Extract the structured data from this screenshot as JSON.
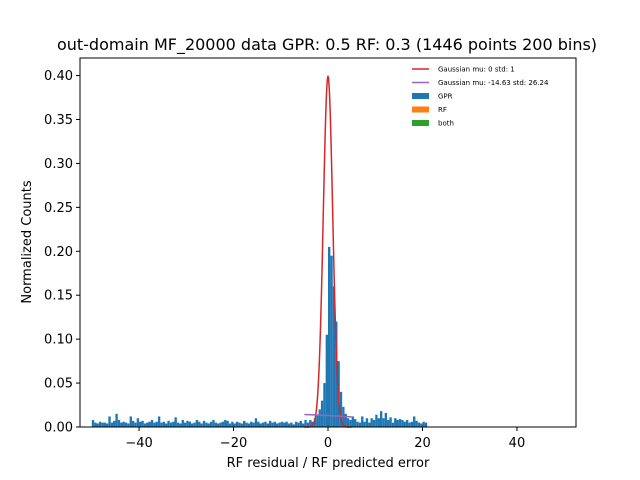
{
  "chart_data": {
    "type": "histogram",
    "title": "out-domain MF_20000 data GPR: 0.5 RF: 0.3 (1446 points 200 bins)",
    "xlabel": "RF residual / RF predicted error",
    "ylabel": "Normalized Counts",
    "xlim": [
      -52.5,
      52.5
    ],
    "ylim": [
      0,
      0.42
    ],
    "xticks": [
      -40,
      -20,
      0,
      20,
      40
    ],
    "xtick_labels": [
      "−40",
      "−20",
      "0",
      "20",
      "40"
    ],
    "yticks": [
      0.0,
      0.05,
      0.1,
      0.15,
      0.2,
      0.25,
      0.3,
      0.35,
      0.4
    ],
    "ytick_labels": [
      "0.00",
      "0.05",
      "0.10",
      "0.15",
      "0.20",
      "0.25",
      "0.30",
      "0.35",
      "0.40"
    ],
    "grid": false,
    "legend_position": "top-right",
    "legend": [
      {
        "label": "Gaussian mu: 0 std: 1",
        "kind": "line",
        "color": "#d62728"
      },
      {
        "label": "Gaussian mu: -14.63 std: 26.24",
        "kind": "line",
        "color": "#9467bd"
      },
      {
        "label": "GPR",
        "kind": "patch",
        "color": "#1f77b4"
      },
      {
        "label": "RF",
        "kind": "patch",
        "color": "#ff7f0e"
      },
      {
        "label": "both",
        "kind": "patch",
        "color": "#2ca02c"
      }
    ],
    "series": [
      {
        "name": "GPR",
        "kind": "histogram",
        "color": "#1f77b4",
        "bin_width": 0.5,
        "bins": [
          [
            -50.0,
            0.008
          ],
          [
            -49.5,
            0.005
          ],
          [
            -49.0,
            0.004
          ],
          [
            -48.5,
            0.006
          ],
          [
            -48.0,
            0.005
          ],
          [
            -47.5,
            0.005
          ],
          [
            -47.0,
            0.004
          ],
          [
            -46.5,
            0.012
          ],
          [
            -46.0,
            0.005
          ],
          [
            -45.5,
            0.007
          ],
          [
            -45.0,
            0.015
          ],
          [
            -44.5,
            0.008
          ],
          [
            -44.0,
            0.005
          ],
          [
            -43.5,
            0.006
          ],
          [
            -43.0,
            0.005
          ],
          [
            -42.5,
            0.004
          ],
          [
            -42.0,
            0.012
          ],
          [
            -41.5,
            0.007
          ],
          [
            -41.0,
            0.005
          ],
          [
            -40.5,
            0.01
          ],
          [
            -40.0,
            0.006
          ],
          [
            -39.5,
            0.007
          ],
          [
            -39.0,
            0.004
          ],
          [
            -38.5,
            0.005
          ],
          [
            -38.0,
            0.006
          ],
          [
            -37.5,
            0.008
          ],
          [
            -37.0,
            0.005
          ],
          [
            -36.5,
            0.006
          ],
          [
            -36.0,
            0.012
          ],
          [
            -35.5,
            0.005
          ],
          [
            -35.0,
            0.006
          ],
          [
            -34.5,
            0.004
          ],
          [
            -34.0,
            0.007
          ],
          [
            -33.5,
            0.005
          ],
          [
            -33.0,
            0.006
          ],
          [
            -32.5,
            0.011
          ],
          [
            -32.0,
            0.005
          ],
          [
            -31.5,
            0.004
          ],
          [
            -31.0,
            0.008
          ],
          [
            -30.5,
            0.005
          ],
          [
            -30.0,
            0.007
          ],
          [
            -29.5,
            0.006
          ],
          [
            -29.0,
            0.004
          ],
          [
            -28.5,
            0.005
          ],
          [
            -28.0,
            0.008
          ],
          [
            -27.5,
            0.006
          ],
          [
            -27.0,
            0.004
          ],
          [
            -26.5,
            0.007
          ],
          [
            -26.0,
            0.005
          ],
          [
            -25.5,
            0.004
          ],
          [
            -25.0,
            0.006
          ],
          [
            -24.5,
            0.008
          ],
          [
            -24.0,
            0.005
          ],
          [
            -23.5,
            0.004
          ],
          [
            -23.0,
            0.005
          ],
          [
            -22.5,
            0.006
          ],
          [
            -22.0,
            0.008
          ],
          [
            -21.5,
            0.007
          ],
          [
            -21.0,
            0.004
          ],
          [
            -20.5,
            0.006
          ],
          [
            -20.0,
            0.004
          ],
          [
            -19.5,
            0.006
          ],
          [
            -19.0,
            0.005
          ],
          [
            -18.5,
            0.004
          ],
          [
            -18.0,
            0.007
          ],
          [
            -17.5,
            0.005
          ],
          [
            -17.0,
            0.004
          ],
          [
            -16.5,
            0.006
          ],
          [
            -16.0,
            0.005
          ],
          [
            -15.5,
            0.01
          ],
          [
            -15.0,
            0.006
          ],
          [
            -14.5,
            0.004
          ],
          [
            -14.0,
            0.005
          ],
          [
            -13.5,
            0.006
          ],
          [
            -13.0,
            0.004
          ],
          [
            -12.5,
            0.007
          ],
          [
            -12.0,
            0.005
          ],
          [
            -11.5,
            0.006
          ],
          [
            -11.0,
            0.004
          ],
          [
            -10.5,
            0.005
          ],
          [
            -10.0,
            0.006
          ],
          [
            -9.5,
            0.005
          ],
          [
            -9.0,
            0.006
          ],
          [
            -8.5,
            0.004
          ],
          [
            -8.0,
            0.005
          ],
          [
            -7.5,
            0.003
          ],
          [
            -7.0,
            0.006
          ],
          [
            -6.5,
            0.005
          ],
          [
            -6.0,
            0.007
          ],
          [
            -5.5,
            0.004
          ],
          [
            -5.0,
            0.008
          ],
          [
            -4.5,
            0.005
          ],
          [
            -4.0,
            0.008
          ],
          [
            -3.5,
            0.006
          ],
          [
            -3.0,
            0.01
          ],
          [
            -2.5,
            0.013
          ],
          [
            -2.0,
            0.02
          ],
          [
            -1.5,
            0.03
          ],
          [
            -1.0,
            0.05
          ],
          [
            -0.5,
            0.105
          ],
          [
            0.0,
            0.205
          ],
          [
            0.5,
            0.195
          ],
          [
            1.0,
            0.16
          ],
          [
            1.5,
            0.12
          ],
          [
            2.0,
            0.075
          ],
          [
            2.5,
            0.04
          ],
          [
            3.0,
            0.023
          ],
          [
            3.5,
            0.015
          ],
          [
            4.0,
            0.01
          ],
          [
            4.5,
            0.008
          ],
          [
            5.0,
            0.012
          ],
          [
            5.5,
            0.009
          ],
          [
            6.0,
            0.006
          ],
          [
            6.5,
            0.005
          ],
          [
            7.0,
            0.012
          ],
          [
            7.5,
            0.006
          ],
          [
            8.0,
            0.01
          ],
          [
            8.5,
            0.005
          ],
          [
            9.0,
            0.01
          ],
          [
            9.5,
            0.008
          ],
          [
            10.0,
            0.014
          ],
          [
            10.5,
            0.01
          ],
          [
            11.0,
            0.018
          ],
          [
            11.5,
            0.01
          ],
          [
            12.0,
            0.016
          ],
          [
            12.5,
            0.008
          ],
          [
            13.0,
            0.011
          ],
          [
            13.5,
            0.005
          ],
          [
            14.0,
            0.01
          ],
          [
            14.5,
            0.008
          ],
          [
            15.0,
            0.009
          ],
          [
            15.5,
            0.008
          ],
          [
            16.0,
            0.006
          ],
          [
            16.5,
            0.008
          ],
          [
            17.0,
            0.005
          ],
          [
            17.5,
            0.006
          ],
          [
            18.0,
            0.012
          ],
          [
            18.5,
            0.007
          ],
          [
            19.0,
            0.005
          ],
          [
            19.5,
            0.004
          ],
          [
            20.0,
            0.006
          ],
          [
            20.5,
            0.005
          ]
        ]
      },
      {
        "name": "RF",
        "kind": "histogram",
        "color": "#ff7f0e",
        "bins": []
      },
      {
        "name": "both",
        "kind": "histogram",
        "color": "#2ca02c",
        "bins": []
      },
      {
        "name": "Gaussian mu: 0 std: 1",
        "kind": "curve",
        "color": "#d62728",
        "function": "gaussian",
        "mu": 0,
        "std": 1,
        "x_range": [
          -5,
          5
        ]
      },
      {
        "name": "Gaussian mu: -14.63 std: 26.24",
        "kind": "curve",
        "color": "#9467bd",
        "function": "gaussian",
        "mu": -14.63,
        "std": 26.24,
        "x_range": [
          -5,
          5
        ]
      }
    ]
  }
}
